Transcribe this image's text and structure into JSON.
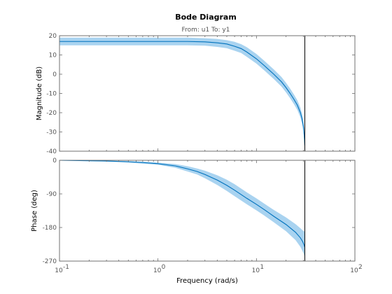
{
  "colors": {
    "line": "#0072bd",
    "band": "#a9d3f0",
    "axis": "#6b6b6b",
    "marker": "#000000"
  },
  "chart_data": {
    "type": "line",
    "title": "Bode Diagram",
    "subtitle": "From: u1  To: y1",
    "xlabel": "Frequency  (rad/s)",
    "xscale": "log",
    "xlim": [
      0.1,
      100
    ],
    "x_ticks": [
      0.1,
      1,
      10,
      100
    ],
    "x_tick_labels": [
      "10",
      "10",
      "10",
      "10"
    ],
    "x_tick_exponents": [
      "-1",
      "0",
      "1",
      "2"
    ],
    "vertical_marker_x": 31,
    "panels": [
      {
        "name": "magnitude",
        "ylabel": "Magnitude (dB)",
        "ylim": [
          -40,
          20
        ],
        "y_ticks": [
          20,
          10,
          0,
          -10,
          -20,
          -30,
          -40
        ],
        "y_tick_labels": [
          "20",
          "10",
          "0",
          "-10",
          "-20",
          "-30",
          "-40"
        ],
        "x": [
          0.1,
          0.5,
          1,
          2,
          3,
          4,
          5,
          6,
          7,
          8,
          10,
          12,
          15,
          18,
          20,
          22,
          24,
          26,
          28,
          29,
          30,
          30.6,
          31
        ],
        "y": [
          17,
          17,
          17,
          17,
          16.8,
          16.3,
          15.7,
          14.5,
          13.3,
          11.5,
          8,
          4.5,
          0,
          -4,
          -7,
          -10,
          -13,
          -16,
          -20,
          -23,
          -27,
          -32,
          -37
        ],
        "band_upper": [
          19,
          19,
          19,
          19,
          18.7,
          18.3,
          17.7,
          16.8,
          15.6,
          14,
          10.5,
          7,
          2.5,
          -1.5,
          -4.5,
          -7.5,
          -10.5,
          -13.5,
          -17.5,
          -20.5,
          -24.5,
          -29.5,
          -35
        ],
        "band_lower": [
          15,
          15,
          15,
          15,
          14.8,
          14.2,
          13.5,
          12.2,
          11,
          9,
          5.5,
          2,
          -2.5,
          -6.5,
          -9.5,
          -12.5,
          -15.5,
          -18.5,
          -22.5,
          -25.5,
          -29.5,
          -34.5,
          -39
        ]
      },
      {
        "name": "phase",
        "ylabel": "Phase (deg)",
        "ylim": [
          -270,
          0
        ],
        "y_ticks": [
          0,
          -90,
          -180,
          -270
        ],
        "y_tick_labels": [
          "0",
          "-90",
          "-180",
          "-270"
        ],
        "x": [
          0.1,
          0.3,
          0.5,
          0.7,
          1,
          1.5,
          2,
          2.5,
          3,
          4,
          5,
          6,
          8,
          10,
          12,
          15,
          20,
          25,
          28,
          29.5,
          30.4,
          30.9
        ],
        "y": [
          0,
          -2,
          -4,
          -6,
          -9,
          -15,
          -23,
          -30,
          -38,
          -53,
          -67,
          -80,
          -102,
          -118,
          -132,
          -150,
          -172,
          -193,
          -208,
          -218,
          -226,
          -232
        ],
        "band_upper": [
          0,
          -1,
          -2,
          -4,
          -6,
          -10,
          -16,
          -22,
          -28,
          -40,
          -52,
          -64,
          -86,
          -102,
          -116,
          -133,
          -153,
          -171,
          -182,
          -188,
          -190,
          -190
        ],
        "band_lower": [
          0,
          -3,
          -6,
          -9,
          -12,
          -20,
          -30,
          -38,
          -48,
          -66,
          -82,
          -96,
          -118,
          -134,
          -148,
          -166,
          -190,
          -214,
          -232,
          -244,
          -252,
          -258
        ]
      }
    ]
  }
}
